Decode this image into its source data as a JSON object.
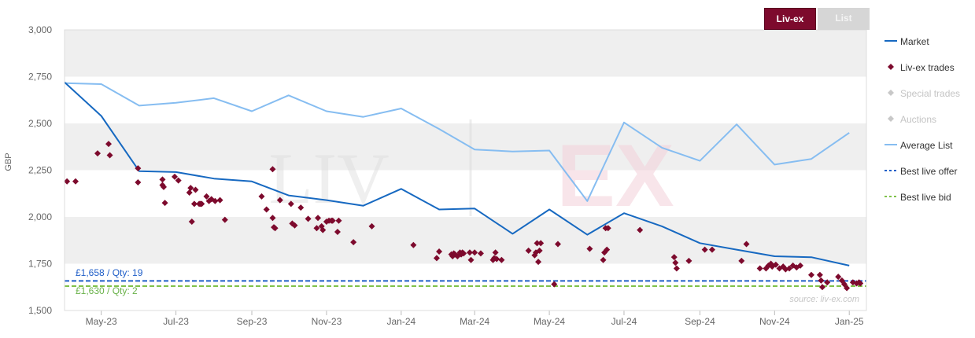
{
  "tabs": [
    {
      "label": "Liv-ex",
      "active": true
    },
    {
      "label": "List",
      "active": false
    }
  ],
  "watermark": {
    "left": "LIV",
    "right": "EX"
  },
  "source_note": "source: liv-ex.com",
  "offer_label": "£1,658 / Qty: 19",
  "bid_label": "£1,630 / Qty: 2",
  "colors": {
    "market": "#1769c1",
    "trades": "#7d0a2d",
    "special_trades": "#c8c8c8",
    "auctions": "#c8c8c8",
    "average_list": "#86bdf1",
    "best_offer": "#1f5ec8",
    "best_bid": "#7fc24a",
    "band": "#efefef",
    "tab_active": "#7d0a2d"
  },
  "chart_data": {
    "type": "line",
    "ylabel": "GBP",
    "ylim": [
      1500,
      3000
    ],
    "yticks": [
      1500,
      1750,
      2000,
      2250,
      2500,
      2750,
      3000
    ],
    "ytick_labels": [
      "1,500",
      "1,750",
      "2,000",
      "2,250",
      "2,500",
      "2,750",
      "3,000"
    ],
    "xlim": [
      "2023-04-01",
      "2025-01-15"
    ],
    "xticks": [
      "2023-05-01",
      "2023-07-01",
      "2023-09-01",
      "2023-11-01",
      "2024-01-01",
      "2024-03-01",
      "2024-05-01",
      "2024-07-01",
      "2024-09-01",
      "2024-11-01",
      "2025-01-01"
    ],
    "xtick_labels": [
      "May-23",
      "Jul-23",
      "Sep-23",
      "Nov-23",
      "Jan-24",
      "Mar-24",
      "May-24",
      "Jul-24",
      "Sep-24",
      "Nov-24",
      "Jan-25"
    ],
    "legend": [
      {
        "name": "Market",
        "symbol": "line"
      },
      {
        "name": "Liv-ex trades",
        "symbol": "diamond"
      },
      {
        "name": "Special trades",
        "symbol": "diamond",
        "inactive": true
      },
      {
        "name": "Auctions",
        "symbol": "diamond",
        "inactive": true
      },
      {
        "name": "Average List",
        "symbol": "line"
      },
      {
        "name": "Best live offer",
        "symbol": "dash"
      },
      {
        "name": "Best live bid",
        "symbol": "dash"
      }
    ],
    "legend_position": "right",
    "series": [
      {
        "name": "Market",
        "points": [
          [
            "2023-04-01",
            2720
          ],
          [
            "2023-05-01",
            2540
          ],
          [
            "2023-06-01",
            2245
          ],
          [
            "2023-07-01",
            2240
          ],
          [
            "2023-08-01",
            2205
          ],
          [
            "2023-09-01",
            2190
          ],
          [
            "2023-10-01",
            2115
          ],
          [
            "2023-11-01",
            2090
          ],
          [
            "2023-12-01",
            2060
          ],
          [
            "2024-01-01",
            2150
          ],
          [
            "2024-02-01",
            2040
          ],
          [
            "2024-03-01",
            2045
          ],
          [
            "2024-04-01",
            1910
          ],
          [
            "2024-05-01",
            2040
          ],
          [
            "2024-06-01",
            1905
          ],
          [
            "2024-07-01",
            2020
          ],
          [
            "2024-08-01",
            1950
          ],
          [
            "2024-09-01",
            1860
          ],
          [
            "2024-10-01",
            1825
          ],
          [
            "2024-11-01",
            1790
          ],
          [
            "2024-12-01",
            1785
          ],
          [
            "2025-01-01",
            1740
          ]
        ]
      },
      {
        "name": "Average List",
        "points": [
          [
            "2023-04-01",
            2715
          ],
          [
            "2023-05-01",
            2710
          ],
          [
            "2023-06-01",
            2595
          ],
          [
            "2023-07-01",
            2610
          ],
          [
            "2023-08-01",
            2635
          ],
          [
            "2023-09-01",
            2565
          ],
          [
            "2023-10-01",
            2650
          ],
          [
            "2023-11-01",
            2565
          ],
          [
            "2023-12-01",
            2535
          ],
          [
            "2024-01-01",
            2580
          ],
          [
            "2024-02-01",
            2470
          ],
          [
            "2024-03-01",
            2360
          ],
          [
            "2024-04-01",
            2350
          ],
          [
            "2024-05-01",
            2355
          ],
          [
            "2024-06-01",
            2085
          ],
          [
            "2024-07-01",
            2505
          ],
          [
            "2024-08-01",
            2370
          ],
          [
            "2024-09-01",
            2300
          ],
          [
            "2024-10-01",
            2495
          ],
          [
            "2024-11-01",
            2280
          ],
          [
            "2024-12-01",
            2310
          ],
          [
            "2025-01-01",
            2450
          ]
        ]
      },
      {
        "name": "Best live offer",
        "value": 1658
      },
      {
        "name": "Best live bid",
        "value": 1630
      },
      {
        "name": "Liv-ex trades",
        "points": [
          [
            "2023-04-03",
            2190
          ],
          [
            "2023-04-10",
            2190
          ],
          [
            "2023-04-28",
            2340
          ],
          [
            "2023-05-07",
            2390
          ],
          [
            "2023-05-08",
            2330
          ],
          [
            "2023-05-31",
            2260
          ],
          [
            "2023-05-31",
            2185
          ],
          [
            "2023-06-20",
            2170
          ],
          [
            "2023-06-20",
            2200
          ],
          [
            "2023-06-21",
            2160
          ],
          [
            "2023-06-22",
            2075
          ],
          [
            "2023-06-30",
            2215
          ],
          [
            "2023-07-03",
            2195
          ],
          [
            "2023-07-12",
            2130
          ],
          [
            "2023-07-13",
            2155
          ],
          [
            "2023-07-14",
            1975
          ],
          [
            "2023-07-16",
            2070
          ],
          [
            "2023-07-17",
            2145
          ],
          [
            "2023-07-20",
            2070
          ],
          [
            "2023-07-21",
            2070
          ],
          [
            "2023-07-22",
            2070
          ],
          [
            "2023-07-26",
            2110
          ],
          [
            "2023-07-28",
            2085
          ],
          [
            "2023-07-30",
            2095
          ],
          [
            "2023-08-02",
            2085
          ],
          [
            "2023-08-06",
            2090
          ],
          [
            "2023-08-10",
            1985
          ],
          [
            "2023-09-09",
            2110
          ],
          [
            "2023-09-13",
            2040
          ],
          [
            "2023-09-18",
            1995
          ],
          [
            "2023-09-19",
            1945
          ],
          [
            "2023-09-20",
            1940
          ],
          [
            "2023-09-18",
            2255
          ],
          [
            "2023-09-24",
            2090
          ],
          [
            "2023-10-03",
            2070
          ],
          [
            "2023-10-04",
            1965
          ],
          [
            "2023-10-06",
            1955
          ],
          [
            "2023-10-11",
            2050
          ],
          [
            "2023-10-17",
            1990
          ],
          [
            "2023-10-24",
            1940
          ],
          [
            "2023-10-25",
            1995
          ],
          [
            "2023-10-28",
            1950
          ],
          [
            "2023-10-29",
            1930
          ],
          [
            "2023-11-01",
            1975
          ],
          [
            "2023-11-03",
            1980
          ],
          [
            "2023-11-05",
            1980
          ],
          [
            "2023-11-06",
            1980
          ],
          [
            "2023-11-10",
            1920
          ],
          [
            "2023-11-11",
            1980
          ],
          [
            "2023-11-23",
            1865
          ],
          [
            "2023-12-08",
            1950
          ],
          [
            "2024-01-11",
            1850
          ],
          [
            "2024-01-30",
            1780
          ],
          [
            "2024-02-01",
            1815
          ],
          [
            "2024-02-11",
            1800
          ],
          [
            "2024-02-12",
            1790
          ],
          [
            "2024-02-13",
            1805
          ],
          [
            "2024-02-14",
            1800
          ],
          [
            "2024-02-16",
            1790
          ],
          [
            "2024-02-18",
            1810
          ],
          [
            "2024-02-19",
            1800
          ],
          [
            "2024-02-20",
            1810
          ],
          [
            "2024-02-21",
            1805
          ],
          [
            "2024-02-26",
            1810
          ],
          [
            "2024-02-27",
            1770
          ],
          [
            "2024-03-01",
            1810
          ],
          [
            "2024-03-06",
            1805
          ],
          [
            "2024-03-16",
            1770
          ],
          [
            "2024-03-17",
            1780
          ],
          [
            "2024-03-18",
            1810
          ],
          [
            "2024-03-19",
            1775
          ],
          [
            "2024-03-23",
            1770
          ],
          [
            "2024-04-14",
            1820
          ],
          [
            "2024-04-19",
            1795
          ],
          [
            "2024-04-20",
            1810
          ],
          [
            "2024-04-21",
            1860
          ],
          [
            "2024-04-22",
            1760
          ],
          [
            "2024-04-23",
            1820
          ],
          [
            "2024-04-24",
            1860
          ],
          [
            "2024-05-05",
            1640
          ],
          [
            "2024-05-08",
            1855
          ],
          [
            "2024-06-03",
            1830
          ],
          [
            "2024-06-14",
            1770
          ],
          [
            "2024-06-15",
            1810
          ],
          [
            "2024-06-16",
            1940
          ],
          [
            "2024-06-17",
            1825
          ],
          [
            "2024-06-18",
            1940
          ],
          [
            "2024-07-14",
            1930
          ],
          [
            "2024-08-11",
            1785
          ],
          [
            "2024-08-12",
            1755
          ],
          [
            "2024-08-13",
            1725
          ],
          [
            "2024-08-23",
            1765
          ],
          [
            "2024-09-05",
            1825
          ],
          [
            "2024-09-11",
            1825
          ],
          [
            "2024-10-05",
            1765
          ],
          [
            "2024-10-09",
            1855
          ],
          [
            "2024-10-20",
            1725
          ],
          [
            "2024-10-25",
            1725
          ],
          [
            "2024-10-27",
            1740
          ],
          [
            "2024-10-29",
            1750
          ],
          [
            "2024-10-30",
            1735
          ],
          [
            "2024-11-02",
            1745
          ],
          [
            "2024-11-05",
            1725
          ],
          [
            "2024-11-08",
            1735
          ],
          [
            "2024-11-10",
            1720
          ],
          [
            "2024-11-13",
            1725
          ],
          [
            "2024-11-16",
            1740
          ],
          [
            "2024-11-19",
            1730
          ],
          [
            "2024-11-22",
            1740
          ],
          [
            "2024-12-01",
            1690
          ],
          [
            "2024-12-08",
            1690
          ],
          [
            "2024-12-09",
            1660
          ],
          [
            "2024-12-10",
            1625
          ],
          [
            "2024-12-14",
            1650
          ],
          [
            "2024-12-23",
            1680
          ],
          [
            "2024-12-26",
            1660
          ],
          [
            "2024-12-28",
            1640
          ],
          [
            "2024-12-30",
            1620
          ],
          [
            "2025-01-04",
            1650
          ],
          [
            "2025-01-07",
            1645
          ],
          [
            "2025-01-09",
            1650
          ],
          [
            "2025-01-10",
            1645
          ]
        ]
      }
    ]
  }
}
